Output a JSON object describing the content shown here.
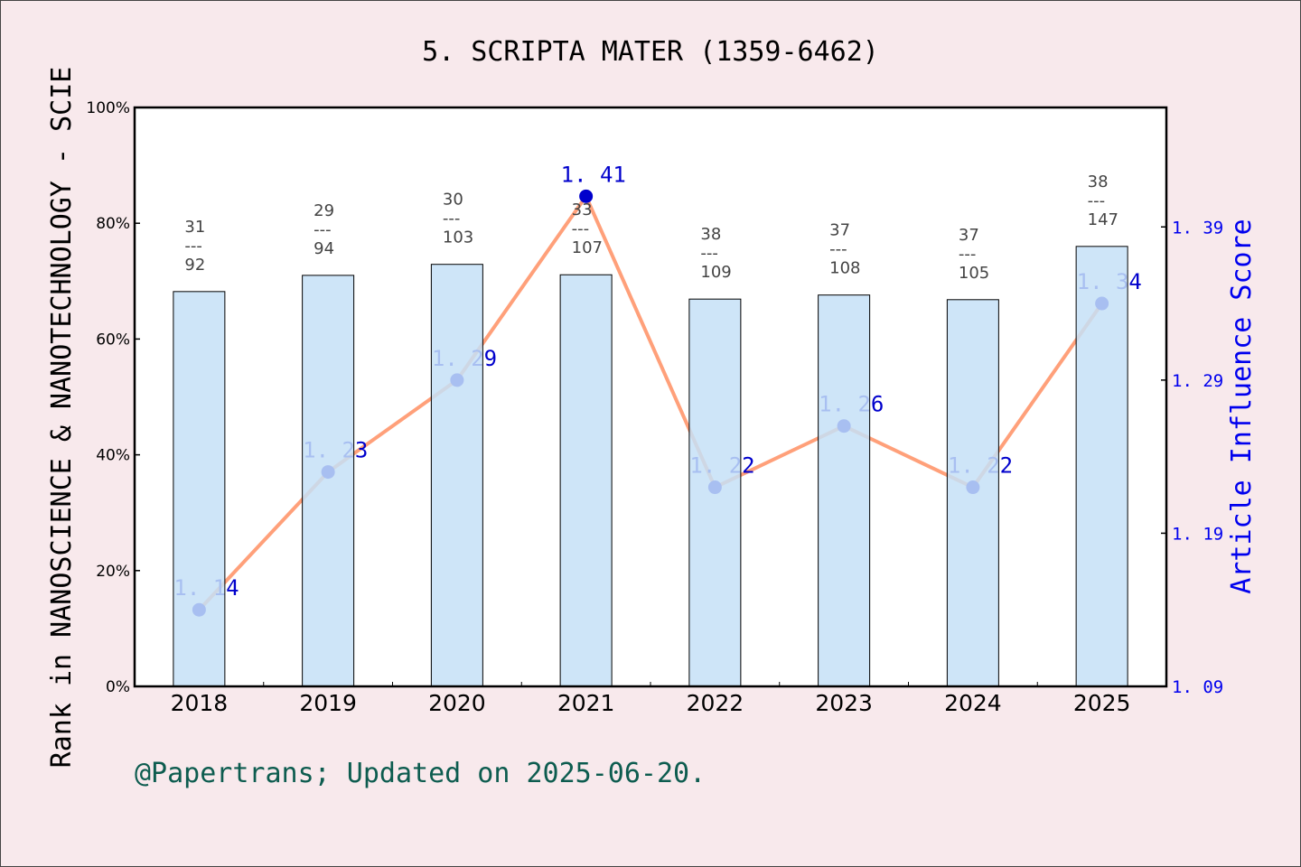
{
  "chart_data": {
    "type": "bar+line",
    "title": "5. SCRIPTA MATER (1359-6462)",
    "ylabel": "Rank in NANOSCIENCE & NANOTECHNOLOGY - SCIE",
    "y2label": "Article Influence Score",
    "categories": [
      "2018",
      "2019",
      "2020",
      "2021",
      "2022",
      "2023",
      "2024",
      "2025"
    ],
    "bar_percent": [
      68.2,
      71.0,
      72.9,
      71.1,
      66.9,
      67.6,
      66.8,
      76.0
    ],
    "ranks": [
      "31",
      "29",
      "30",
      "33",
      "38",
      "37",
      "37",
      "38"
    ],
    "totals": [
      "92",
      "94",
      "103",
      "107",
      "109",
      "108",
      "105",
      "147"
    ],
    "line_values": [
      1.14,
      1.23,
      1.29,
      1.41,
      1.22,
      1.26,
      1.22,
      1.34
    ],
    "line_labels": [
      "1. 14",
      "1. 23",
      "1. 29",
      "1. 41",
      "1. 22",
      "1. 26",
      "1. 22",
      "1. 34"
    ],
    "ylim": [
      0,
      100
    ],
    "yticks": [
      "0%",
      "20%",
      "40%",
      "60%",
      "80%",
      "100%"
    ],
    "y2lim": [
      1.09,
      1.468
    ],
    "y2ticks": [
      "1. 09",
      "1. 19",
      "1. 29",
      "1. 39"
    ],
    "grid": false,
    "colors": {
      "bar": "#c5e0f7",
      "line": "#ffa07a",
      "marker": "#0000cc",
      "right_axis": "#0000ee",
      "footer": "#0d5c4f",
      "background": "#f8e9ec"
    }
  },
  "footer": "@Papertrans; Updated on 2025-06-20."
}
